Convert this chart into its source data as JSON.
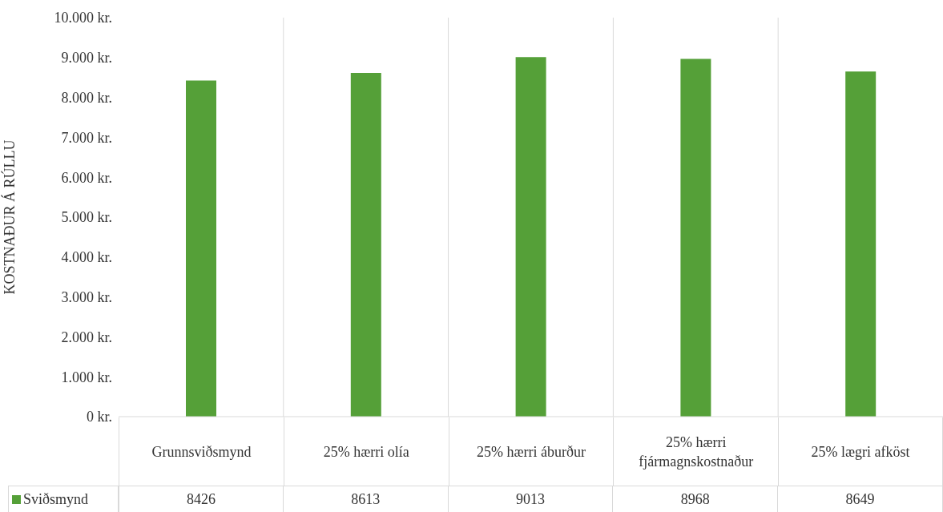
{
  "chart_data": {
    "type": "bar",
    "ylabel": "KOSTNAÐUR Á RÚLLU",
    "categories": [
      "Grunnsviðsmynd",
      "25% hærri olía",
      "25% hærri áburður",
      "25% hærri fjármagnskostnaður",
      "25% lægri afköst"
    ],
    "series": [
      {
        "name": "Sviðsmynd",
        "color": "#55a038",
        "values": [
          8426,
          8613,
          9013,
          8968,
          8649
        ]
      }
    ],
    "ylim": [
      0,
      10000
    ],
    "yticks": [
      {
        "value": 0,
        "label": "0 kr."
      },
      {
        "value": 1000,
        "label": "1.000 kr."
      },
      {
        "value": 2000,
        "label": "2.000 kr."
      },
      {
        "value": 3000,
        "label": "3.000 kr."
      },
      {
        "value": 4000,
        "label": "4.000 kr."
      },
      {
        "value": 5000,
        "label": "5.000 kr."
      },
      {
        "value": 6000,
        "label": "6.000 kr."
      },
      {
        "value": 7000,
        "label": "7.000 kr."
      },
      {
        "value": 8000,
        "label": "8.000 kr."
      },
      {
        "value": 9000,
        "label": "9.000 kr."
      },
      {
        "value": 10000,
        "label": "10.000 kr."
      }
    ],
    "grid": "x",
    "legend": "bottom",
    "data_labels": true
  }
}
